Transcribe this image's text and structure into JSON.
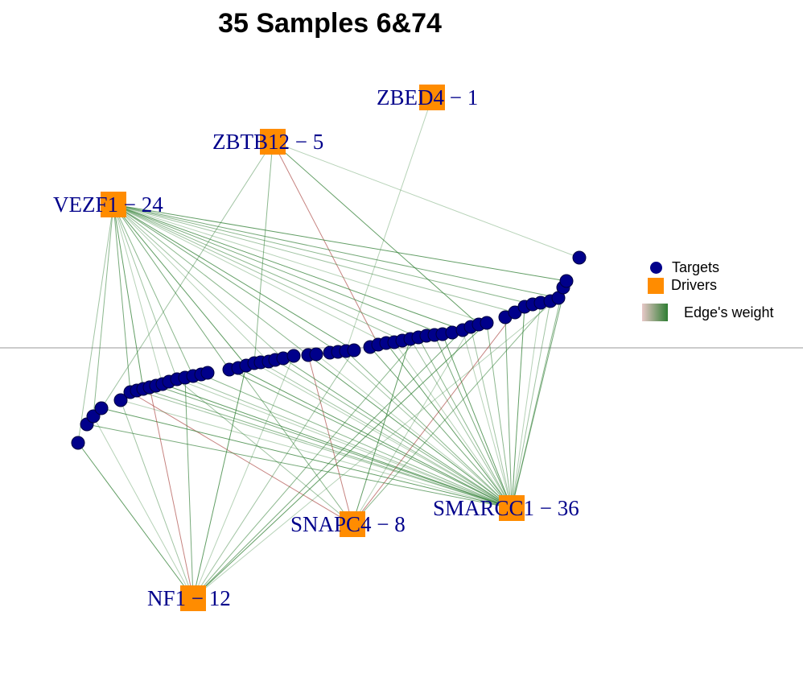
{
  "title": "35 Samples 6&74",
  "legend": {
    "targets": "Targets",
    "drivers": "Drivers",
    "edge_weight": "Edge's weight"
  },
  "colors": {
    "target": "#00008b",
    "driver": "#ff8c00",
    "edge_positive": "#2e7d32",
    "edge_negative": "#a0312b",
    "baseline": "#999999"
  },
  "drivers": [
    {
      "id": "ZBED4",
      "label": "ZBED4 − 1",
      "degree": 1
    },
    {
      "id": "ZBTB12",
      "label": "ZBTB12 − 5",
      "degree": 5
    },
    {
      "id": "VEZF1",
      "label": "VEZF1 − 24",
      "degree": 24
    },
    {
      "id": "SNAPC4",
      "label": "SNAPC4 − 8",
      "degree": 8
    },
    {
      "id": "SMARCC1",
      "label": "SMARCC1 − 36",
      "degree": 36
    },
    {
      "id": "NF1",
      "label": "NF1 − 12",
      "degree": 12
    }
  ]
}
